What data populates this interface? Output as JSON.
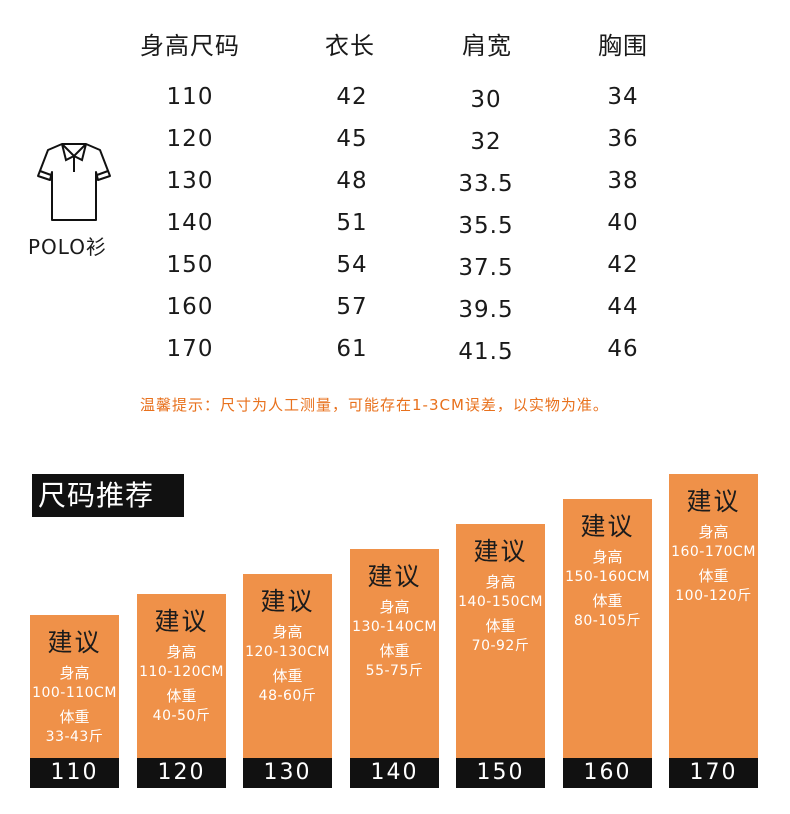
{
  "table": {
    "headers": [
      "身高尺码",
      "衣长",
      "肩宽",
      "胸围"
    ],
    "rows": [
      [
        "110",
        "42",
        "30",
        "34"
      ],
      [
        "120",
        "45",
        "32",
        "36"
      ],
      [
        "130",
        "48",
        "33.5",
        "38"
      ],
      [
        "140",
        "51",
        "35.5",
        "40"
      ],
      [
        "150",
        "54",
        "37.5",
        "42"
      ],
      [
        "160",
        "57",
        "39.5",
        "44"
      ],
      [
        "170",
        "61",
        "41.5",
        "46"
      ]
    ]
  },
  "product": {
    "label": "POLO衫",
    "icon": "polo-shirt-icon"
  },
  "tip": "温馨提示：尺寸为人工测量，可能存在1-3CM误差，以实物为准。",
  "recommend": {
    "title": "尺码推荐",
    "bars": [
      {
        "title": "建议",
        "h_label": "身高",
        "height": "100-110CM",
        "w_label": "体重",
        "weight": "33-43斤",
        "size": "110"
      },
      {
        "title": "建议",
        "h_label": "身高",
        "height": "110-120CM",
        "w_label": "体重",
        "weight": "40-50斤",
        "size": "120"
      },
      {
        "title": "建议",
        "h_label": "身高",
        "height": "120-130CM",
        "w_label": "体重",
        "weight": "48-60斤",
        "size": "130"
      },
      {
        "title": "建议",
        "h_label": "身高",
        "height": "130-140CM",
        "w_label": "体重",
        "weight": "55-75斤",
        "size": "140"
      },
      {
        "title": "建议",
        "h_label": "身高",
        "height": "140-150CM",
        "w_label": "体重",
        "weight": "70-92斤",
        "size": "150"
      },
      {
        "title": "建议",
        "h_label": "身高",
        "height": "150-160CM",
        "w_label": "体重",
        "weight": "80-105斤",
        "size": "160"
      },
      {
        "title": "建议",
        "h_label": "身高",
        "height": "160-170CM",
        "w_label": "体重",
        "weight": "100-120斤",
        "size": "170"
      }
    ]
  },
  "colors": {
    "accent": "#ef9149",
    "tip": "#e8711d",
    "dark": "#111111"
  }
}
